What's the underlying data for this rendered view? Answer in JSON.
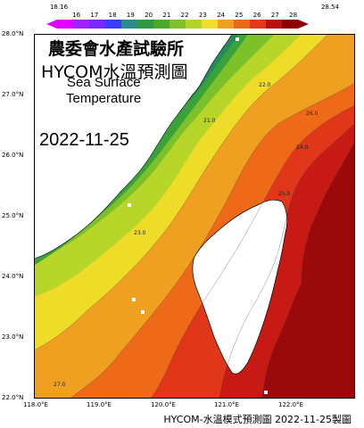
{
  "colorbar": {
    "min_label": "18.16",
    "max_label": "28.54",
    "ticks": [
      "16",
      "17",
      "18",
      "19",
      "20",
      "21",
      "22",
      "23",
      "24",
      "25",
      "26",
      "27",
      "28"
    ],
    "colors": [
      "#e000ff",
      "#a020ff",
      "#7a28ff",
      "#3c3cff",
      "#2a8c8c",
      "#2e9a44",
      "#4aaa2a",
      "#80c02a",
      "#b4d42a",
      "#f0dc2a",
      "#f0a020",
      "#e86a14",
      "#e03818",
      "#b81010",
      "#8c0000"
    ]
  },
  "title": {
    "line1": "農委會水產試驗所",
    "line2": "HYCOM水溫預測圖",
    "line3": "Sea Surface",
    "line4": "Temperature"
  },
  "date": "2022-11-25",
  "lat_labels": [
    "28.0°N",
    "27.0°N",
    "26.0°N",
    "25.0°N",
    "24.0°N",
    "23.0°N",
    "22.0°N"
  ],
  "lon_labels": [
    "118.0°E",
    "119.0°E",
    "120.0°E",
    "121.0°E",
    "122.0°E"
  ],
  "footer": "HYCOM-水溫模式預測圖 2022-11-25製圖",
  "contour_labels": [
    "23.0",
    "24.0",
    "25.0",
    "26.0",
    "27.0",
    "21.0",
    "22.0"
  ],
  "colors": {
    "land": "#ffffff",
    "coast": "#000000"
  }
}
